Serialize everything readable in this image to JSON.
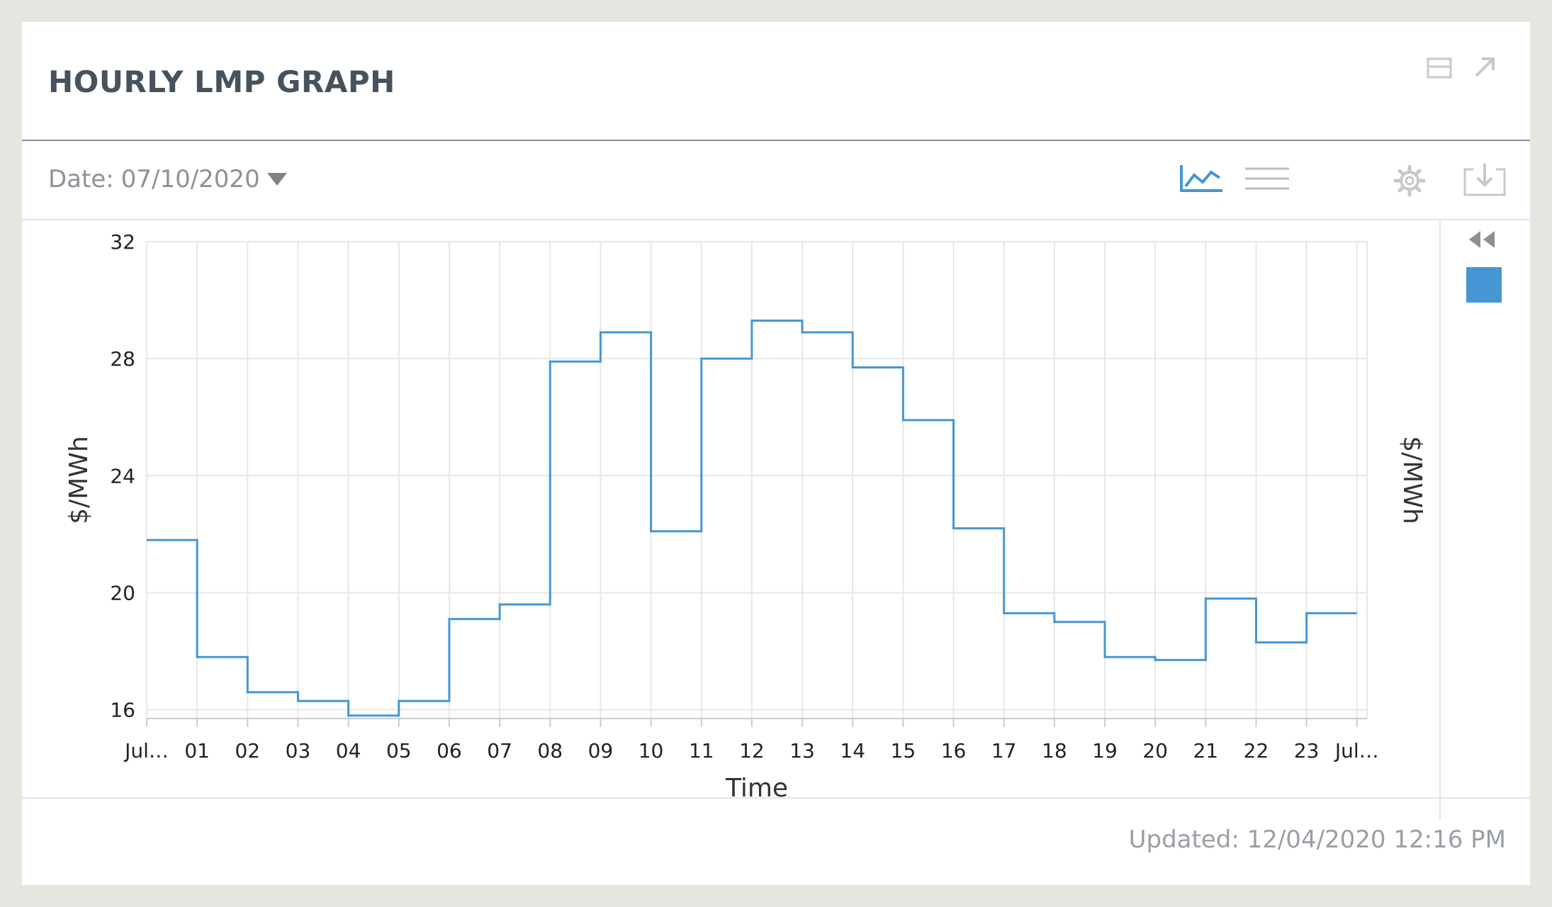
{
  "header": {
    "title": "HOURLY LMP GRAPH",
    "icons": [
      "minimize-icon",
      "expand-icon"
    ]
  },
  "toolbar": {
    "date_label": "Date:",
    "date_value": "07/10/2020",
    "icons": [
      "line-chart-icon",
      "table-view-icon",
      "settings-icon",
      "download-icon"
    ],
    "active_view": "line-chart"
  },
  "side_panel": {
    "icons": [
      "collapse-left-icon",
      "legend-swatch"
    ],
    "swatch_color": "#4596d3"
  },
  "footer": {
    "updated_text": "Updated: 12/04/2020 12:16 PM"
  },
  "colors": {
    "series": "#4596d3",
    "title": "#46535e",
    "muted": "#8c9297",
    "grid": "#e5e7e9"
  },
  "chart_data": {
    "type": "line",
    "step": true,
    "x_tick_labels": [
      "Jul…",
      "01",
      "02",
      "03",
      "04",
      "05",
      "06",
      "07",
      "08",
      "09",
      "10",
      "11",
      "12",
      "13",
      "14",
      "15",
      "16",
      "17",
      "18",
      "19",
      "20",
      "21",
      "22",
      "23",
      "Jul…"
    ],
    "xlabel": "Time",
    "ylabel": "$/MWh",
    "ylabel_right": "$/MWh",
    "ylim": [
      15.7,
      32
    ],
    "yticks": [
      16,
      20,
      24,
      28,
      32
    ],
    "grid": true,
    "series": [
      {
        "hours": [
          0,
          1,
          2,
          3,
          4,
          5,
          6,
          7,
          8,
          9,
          10,
          11,
          12,
          13,
          14,
          15,
          16,
          17,
          18,
          19,
          20,
          21,
          22,
          23
        ],
        "values": [
          21.8,
          17.8,
          16.6,
          16.3,
          15.8,
          16.3,
          19.1,
          19.6,
          27.9,
          28.9,
          22.1,
          28.0,
          29.3,
          28.9,
          27.7,
          25.9,
          22.2,
          19.3,
          19.0,
          17.8,
          17.7,
          19.8,
          18.3,
          19.3
        ]
      }
    ]
  }
}
